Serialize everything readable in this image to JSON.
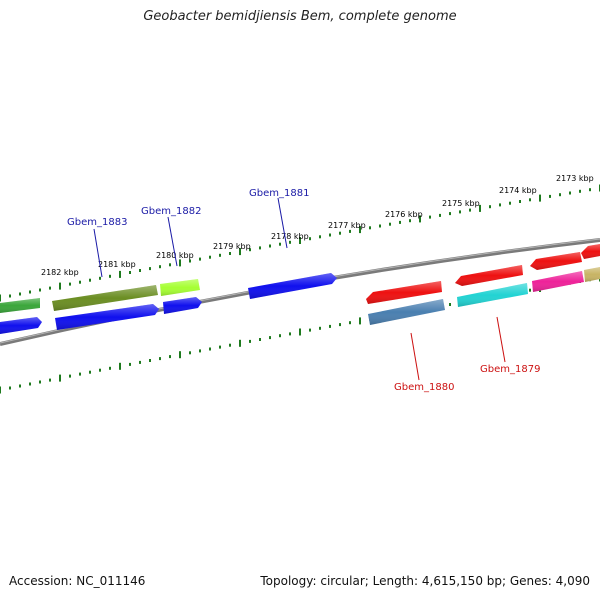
{
  "title": "Geobacter bemidjiensis Bem, complete genome",
  "footer": {
    "accession": "Accession: NC_011146",
    "summary": "Topology: circular; Length: 4,615,150 bp; Genes: 4,090"
  },
  "tick_labels": [
    "2182 kbp",
    "2181 kbp",
    "2180 kbp",
    "2179 kbp",
    "2178 kbp",
    "2177 kbp",
    "2176 kbp",
    "2175 kbp",
    "2174 kbp",
    "2173 kbp"
  ],
  "gene_labels": [
    {
      "text": "Gbem_1883",
      "color": "#1a1aa6"
    },
    {
      "text": "Gbem_1882",
      "color": "#1a1aa6"
    },
    {
      "text": "Gbem_1881",
      "color": "#1a1aa6"
    },
    {
      "text": "Gbem_1880",
      "color": "#cc1111"
    },
    {
      "text": "Gbem_1879",
      "color": "#cc1111"
    }
  ],
  "colors": {
    "ticks": "#1e7a1e",
    "backbone": "#808080",
    "gene_green": "#3aa63a",
    "gene_olive": "#6b8e23",
    "gene_yellowgreen": "#a6ff33",
    "gene_blue": "#1010ee",
    "gene_red": "#ee1111",
    "gene_steelblue": "#4a7fb0",
    "gene_cyan": "#22d3d3",
    "gene_pink": "#ee2299",
    "gene_khaki": "#c8b464"
  }
}
